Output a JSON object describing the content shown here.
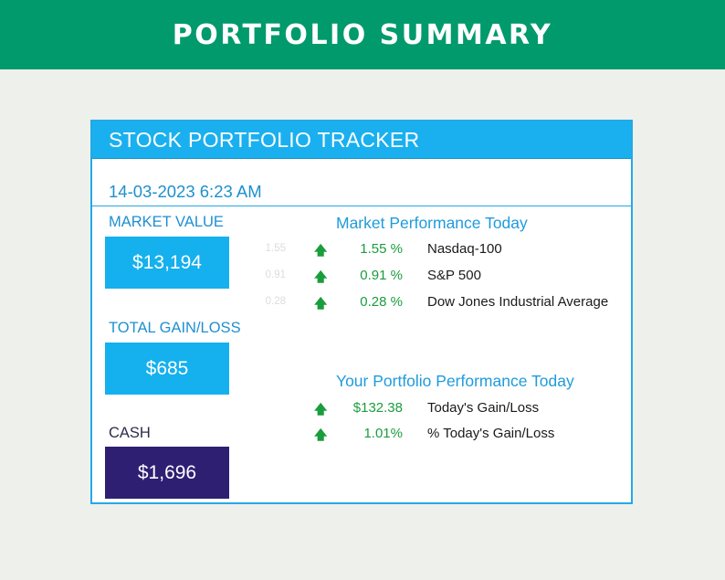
{
  "banner": {
    "title": "PORTFOLIO SUMMARY"
  },
  "card": {
    "title": "STOCK PORTFOLIO TRACKER",
    "timestamp": "14-03-2023 6:23 AM",
    "colors": {
      "header": "#1ab0ef",
      "border": "#23a9e6",
      "kpi_blue": "#15b0ee",
      "kpi_purple": "#2f1f73",
      "gain_green": "#1a9d3d"
    }
  },
  "kpis": {
    "market_value": {
      "label": "MARKET VALUE",
      "value": "$13,194"
    },
    "total_gain_loss": {
      "label": "TOTAL GAIN/LOSS",
      "value": "$685"
    },
    "cash": {
      "label": "CASH",
      "value": "$1,696"
    }
  },
  "market_performance": {
    "title": "Market Performance Today",
    "rows": [
      {
        "faint_value": "1.55",
        "arrow_icon": "up-arrow-icon",
        "pct": "1.55 %",
        "name": "Nasdaq-100"
      },
      {
        "faint_value": "0.91",
        "arrow_icon": "up-arrow-icon",
        "pct": "0.91 %",
        "name": "S&P 500"
      },
      {
        "faint_value": "0.28",
        "arrow_icon": "up-arrow-icon",
        "pct": "0.28 %",
        "name": "Dow Jones Industrial Average"
      }
    ]
  },
  "portfolio_performance": {
    "title": "Your Portfolio Performance Today",
    "rows": [
      {
        "arrow_icon": "up-arrow-icon",
        "value": "$132.38",
        "name": "Today's Gain/Loss"
      },
      {
        "arrow_icon": "up-arrow-icon",
        "value": "1.01%",
        "name": "% Today's Gain/Loss"
      }
    ]
  }
}
